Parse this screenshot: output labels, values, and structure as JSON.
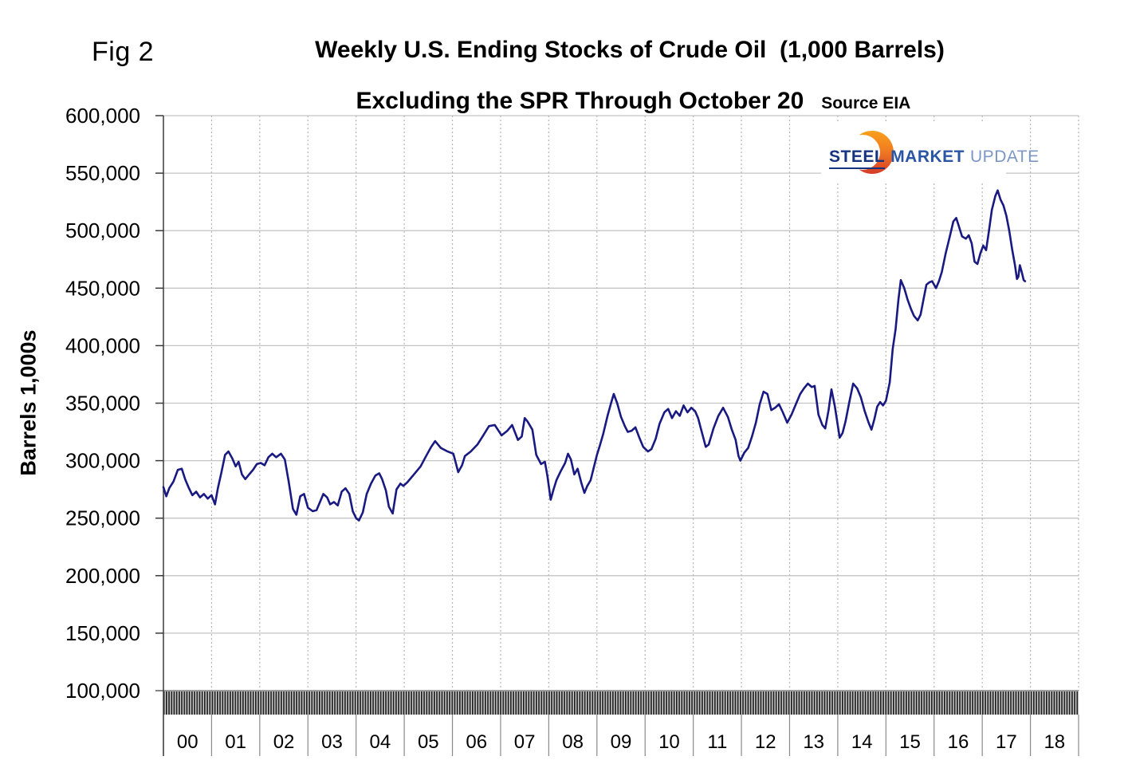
{
  "figure": {
    "fig_label": "Fig 2",
    "title_line1": "Weekly U.S. Ending Stocks of Crude Oil  (1,000 Barrels)",
    "title_line2": "Excluding the SPR Through October 20",
    "source": "Source EIA"
  },
  "logo": {
    "part1": "STEEL",
    "part2": "MARKET",
    "part3": "UPDATE",
    "color1": "#16337f",
    "color2": "#2a55a4",
    "color3": "#7c97c6",
    "swoosh_top": "#f9a01b",
    "swoosh_bottom": "#d63c28"
  },
  "chart_data": {
    "type": "line",
    "title": "Weekly U.S. Ending Stocks of Crude Oil (1,000 Barrels) Excluding the SPR Through October 20",
    "source": "EIA",
    "xlabel": "",
    "ylabel": "Barrels 1,000s",
    "xlim": [
      2000,
      2019
    ],
    "ylim": [
      100000,
      600000
    ],
    "ytick_step": 50000,
    "x_years": [
      "00",
      "01",
      "02",
      "03",
      "04",
      "05",
      "06",
      "07",
      "08",
      "09",
      "10",
      "11",
      "12",
      "13",
      "14",
      "15",
      "16",
      "17",
      "18"
    ],
    "grid": "horizontal solid, vertical dotted at year boundaries",
    "legend": "none",
    "line_color": "#191982",
    "series": [
      {
        "name": "Weekly U.S. Ending Stocks of Crude Oil excluding SPR (1,000 Barrels)",
        "points": [
          [
            2000.0,
            277000
          ],
          [
            2000.06,
            269000
          ],
          [
            2000.12,
            276000
          ],
          [
            2000.21,
            282000
          ],
          [
            2000.3,
            292000
          ],
          [
            2000.38,
            293000
          ],
          [
            2000.45,
            284000
          ],
          [
            2000.52,
            277000
          ],
          [
            2000.6,
            270000
          ],
          [
            2000.68,
            273000
          ],
          [
            2000.76,
            268000
          ],
          [
            2000.84,
            271000
          ],
          [
            2000.92,
            267000
          ],
          [
            2001.0,
            270000
          ],
          [
            2001.07,
            262000
          ],
          [
            2001.13,
            276000
          ],
          [
            2001.2,
            289000
          ],
          [
            2001.28,
            305000
          ],
          [
            2001.35,
            308000
          ],
          [
            2001.43,
            302000
          ],
          [
            2001.5,
            295000
          ],
          [
            2001.56,
            299000
          ],
          [
            2001.63,
            288000
          ],
          [
            2001.7,
            284000
          ],
          [
            2001.78,
            288000
          ],
          [
            2001.86,
            292000
          ],
          [
            2001.94,
            297000
          ],
          [
            2002.02,
            298000
          ],
          [
            2002.1,
            296000
          ],
          [
            2002.18,
            303000
          ],
          [
            2002.26,
            306000
          ],
          [
            2002.34,
            303000
          ],
          [
            2002.44,
            306000
          ],
          [
            2002.52,
            301000
          ],
          [
            2002.6,
            282000
          ],
          [
            2002.69,
            258000
          ],
          [
            2002.76,
            253000
          ],
          [
            2002.84,
            269000
          ],
          [
            2002.92,
            271000
          ],
          [
            2003.0,
            259000
          ],
          [
            2003.1,
            256000
          ],
          [
            2003.18,
            257000
          ],
          [
            2003.27,
            266000
          ],
          [
            2003.32,
            271000
          ],
          [
            2003.4,
            268000
          ],
          [
            2003.46,
            262000
          ],
          [
            2003.54,
            264000
          ],
          [
            2003.62,
            261000
          ],
          [
            2003.7,
            273000
          ],
          [
            2003.78,
            276000
          ],
          [
            2003.86,
            271000
          ],
          [
            2003.93,
            256000
          ],
          [
            2004.0,
            250000
          ],
          [
            2004.06,
            248000
          ],
          [
            2004.14,
            255000
          ],
          [
            2004.22,
            271000
          ],
          [
            2004.31,
            280000
          ],
          [
            2004.4,
            287000
          ],
          [
            2004.48,
            289000
          ],
          [
            2004.54,
            284000
          ],
          [
            2004.62,
            274000
          ],
          [
            2004.68,
            260000
          ],
          [
            2004.76,
            254000
          ],
          [
            2004.84,
            275000
          ],
          [
            2004.92,
            280000
          ],
          [
            2004.98,
            278000
          ],
          [
            2005.06,
            281000
          ],
          [
            2005.2,
            288000
          ],
          [
            2005.34,
            295000
          ],
          [
            2005.44,
            303000
          ],
          [
            2005.56,
            312000
          ],
          [
            2005.64,
            317000
          ],
          [
            2005.76,
            311000
          ],
          [
            2005.9,
            308000
          ],
          [
            2006.02,
            306000
          ],
          [
            2006.12,
            290000
          ],
          [
            2006.2,
            296000
          ],
          [
            2006.26,
            304000
          ],
          [
            2006.38,
            308000
          ],
          [
            2006.52,
            314000
          ],
          [
            2006.64,
            322000
          ],
          [
            2006.76,
            330000
          ],
          [
            2006.88,
            331000
          ],
          [
            2007.02,
            322000
          ],
          [
            2007.14,
            326000
          ],
          [
            2007.24,
            331000
          ],
          [
            2007.36,
            318000
          ],
          [
            2007.44,
            321000
          ],
          [
            2007.5,
            337000
          ],
          [
            2007.56,
            334000
          ],
          [
            2007.66,
            327000
          ],
          [
            2007.74,
            305000
          ],
          [
            2007.84,
            297000
          ],
          [
            2007.92,
            299000
          ],
          [
            2007.97,
            287000
          ],
          [
            2008.04,
            266000
          ],
          [
            2008.1,
            275000
          ],
          [
            2008.16,
            283000
          ],
          [
            2008.25,
            291000
          ],
          [
            2008.34,
            298000
          ],
          [
            2008.4,
            306000
          ],
          [
            2008.46,
            301000
          ],
          [
            2008.53,
            288000
          ],
          [
            2008.6,
            293000
          ],
          [
            2008.68,
            280000
          ],
          [
            2008.74,
            272000
          ],
          [
            2008.8,
            278000
          ],
          [
            2008.87,
            283000
          ],
          [
            2008.94,
            295000
          ],
          [
            2009.0,
            305000
          ],
          [
            2009.06,
            313000
          ],
          [
            2009.13,
            323000
          ],
          [
            2009.22,
            339000
          ],
          [
            2009.3,
            351000
          ],
          [
            2009.35,
            358000
          ],
          [
            2009.42,
            350000
          ],
          [
            2009.5,
            338000
          ],
          [
            2009.58,
            330000
          ],
          [
            2009.64,
            325000
          ],
          [
            2009.72,
            326000
          ],
          [
            2009.8,
            329000
          ],
          [
            2009.88,
            320000
          ],
          [
            2009.96,
            312000
          ],
          [
            2010.06,
            308000
          ],
          [
            2010.13,
            310000
          ],
          [
            2010.22,
            319000
          ],
          [
            2010.3,
            332000
          ],
          [
            2010.4,
            342000
          ],
          [
            2010.48,
            345000
          ],
          [
            2010.56,
            337000
          ],
          [
            2010.64,
            343000
          ],
          [
            2010.72,
            339000
          ],
          [
            2010.8,
            348000
          ],
          [
            2010.88,
            342000
          ],
          [
            2010.96,
            346000
          ],
          [
            2011.04,
            343000
          ],
          [
            2011.1,
            337000
          ],
          [
            2011.17,
            326000
          ],
          [
            2011.26,
            312000
          ],
          [
            2011.32,
            314000
          ],
          [
            2011.42,
            328000
          ],
          [
            2011.52,
            339000
          ],
          [
            2011.62,
            346000
          ],
          [
            2011.72,
            338000
          ],
          [
            2011.8,
            327000
          ],
          [
            2011.88,
            318000
          ],
          [
            2011.94,
            304000
          ],
          [
            2011.98,
            300000
          ],
          [
            2012.06,
            307000
          ],
          [
            2012.14,
            311000
          ],
          [
            2012.22,
            321000
          ],
          [
            2012.3,
            333000
          ],
          [
            2012.38,
            349000
          ],
          [
            2012.46,
            360000
          ],
          [
            2012.54,
            358000
          ],
          [
            2012.62,
            344000
          ],
          [
            2012.7,
            346000
          ],
          [
            2012.78,
            349000
          ],
          [
            2012.86,
            342000
          ],
          [
            2012.95,
            333000
          ],
          [
            2013.04,
            340000
          ],
          [
            2013.14,
            350000
          ],
          [
            2013.22,
            358000
          ],
          [
            2013.3,
            363000
          ],
          [
            2013.38,
            367000
          ],
          [
            2013.46,
            364000
          ],
          [
            2013.52,
            365000
          ],
          [
            2013.6,
            340000
          ],
          [
            2013.68,
            331000
          ],
          [
            2013.74,
            328000
          ],
          [
            2013.81,
            344000
          ],
          [
            2013.87,
            362000
          ],
          [
            2013.94,
            347000
          ],
          [
            2014.04,
            320000
          ],
          [
            2014.1,
            324000
          ],
          [
            2014.16,
            334000
          ],
          [
            2014.24,
            351000
          ],
          [
            2014.32,
            367000
          ],
          [
            2014.4,
            363000
          ],
          [
            2014.48,
            355000
          ],
          [
            2014.56,
            343000
          ],
          [
            2014.64,
            333000
          ],
          [
            2014.7,
            327000
          ],
          [
            2014.76,
            336000
          ],
          [
            2014.82,
            347000
          ],
          [
            2014.88,
            351000
          ],
          [
            2014.94,
            348000
          ],
          [
            2015.0,
            352000
          ],
          [
            2015.08,
            368000
          ],
          [
            2015.14,
            397000
          ],
          [
            2015.2,
            414000
          ],
          [
            2015.26,
            440000
          ],
          [
            2015.31,
            457000
          ],
          [
            2015.38,
            450000
          ],
          [
            2015.45,
            440000
          ],
          [
            2015.52,
            432000
          ],
          [
            2015.58,
            426000
          ],
          [
            2015.66,
            422000
          ],
          [
            2015.72,
            427000
          ],
          [
            2015.78,
            440000
          ],
          [
            2015.84,
            453000
          ],
          [
            2015.9,
            455000
          ],
          [
            2015.96,
            456000
          ],
          [
            2016.04,
            450000
          ],
          [
            2016.1,
            456000
          ],
          [
            2016.16,
            464000
          ],
          [
            2016.24,
            480000
          ],
          [
            2016.32,
            494000
          ],
          [
            2016.4,
            508000
          ],
          [
            2016.46,
            511000
          ],
          [
            2016.52,
            503000
          ],
          [
            2016.58,
            495000
          ],
          [
            2016.66,
            493000
          ],
          [
            2016.72,
            496000
          ],
          [
            2016.78,
            489000
          ],
          [
            2016.84,
            473000
          ],
          [
            2016.9,
            471000
          ],
          [
            2016.96,
            480000
          ],
          [
            2017.02,
            487000
          ],
          [
            2017.08,
            483000
          ],
          [
            2017.14,
            500000
          ],
          [
            2017.2,
            518000
          ],
          [
            2017.27,
            530000
          ],
          [
            2017.32,
            535000
          ],
          [
            2017.38,
            527000
          ],
          [
            2017.44,
            522000
          ],
          [
            2017.5,
            513000
          ],
          [
            2017.56,
            500000
          ],
          [
            2017.62,
            484000
          ],
          [
            2017.68,
            470000
          ],
          [
            2017.72,
            458000
          ],
          [
            2017.75,
            460000
          ],
          [
            2017.78,
            470000
          ],
          [
            2017.82,
            464000
          ],
          [
            2017.86,
            457000
          ],
          [
            2017.89,
            456000
          ]
        ]
      }
    ],
    "colors": {
      "h_grid": "#c4c4c4",
      "v_grid_dotted": "#b5b5b5",
      "axis": "#3a3a3a",
      "baseline": "#7d7d7d",
      "band_bg": "#cfcfcf",
      "band_bar": "#1f1f1f",
      "divider": "#8a8a8a",
      "tick_label": "#000000"
    }
  }
}
